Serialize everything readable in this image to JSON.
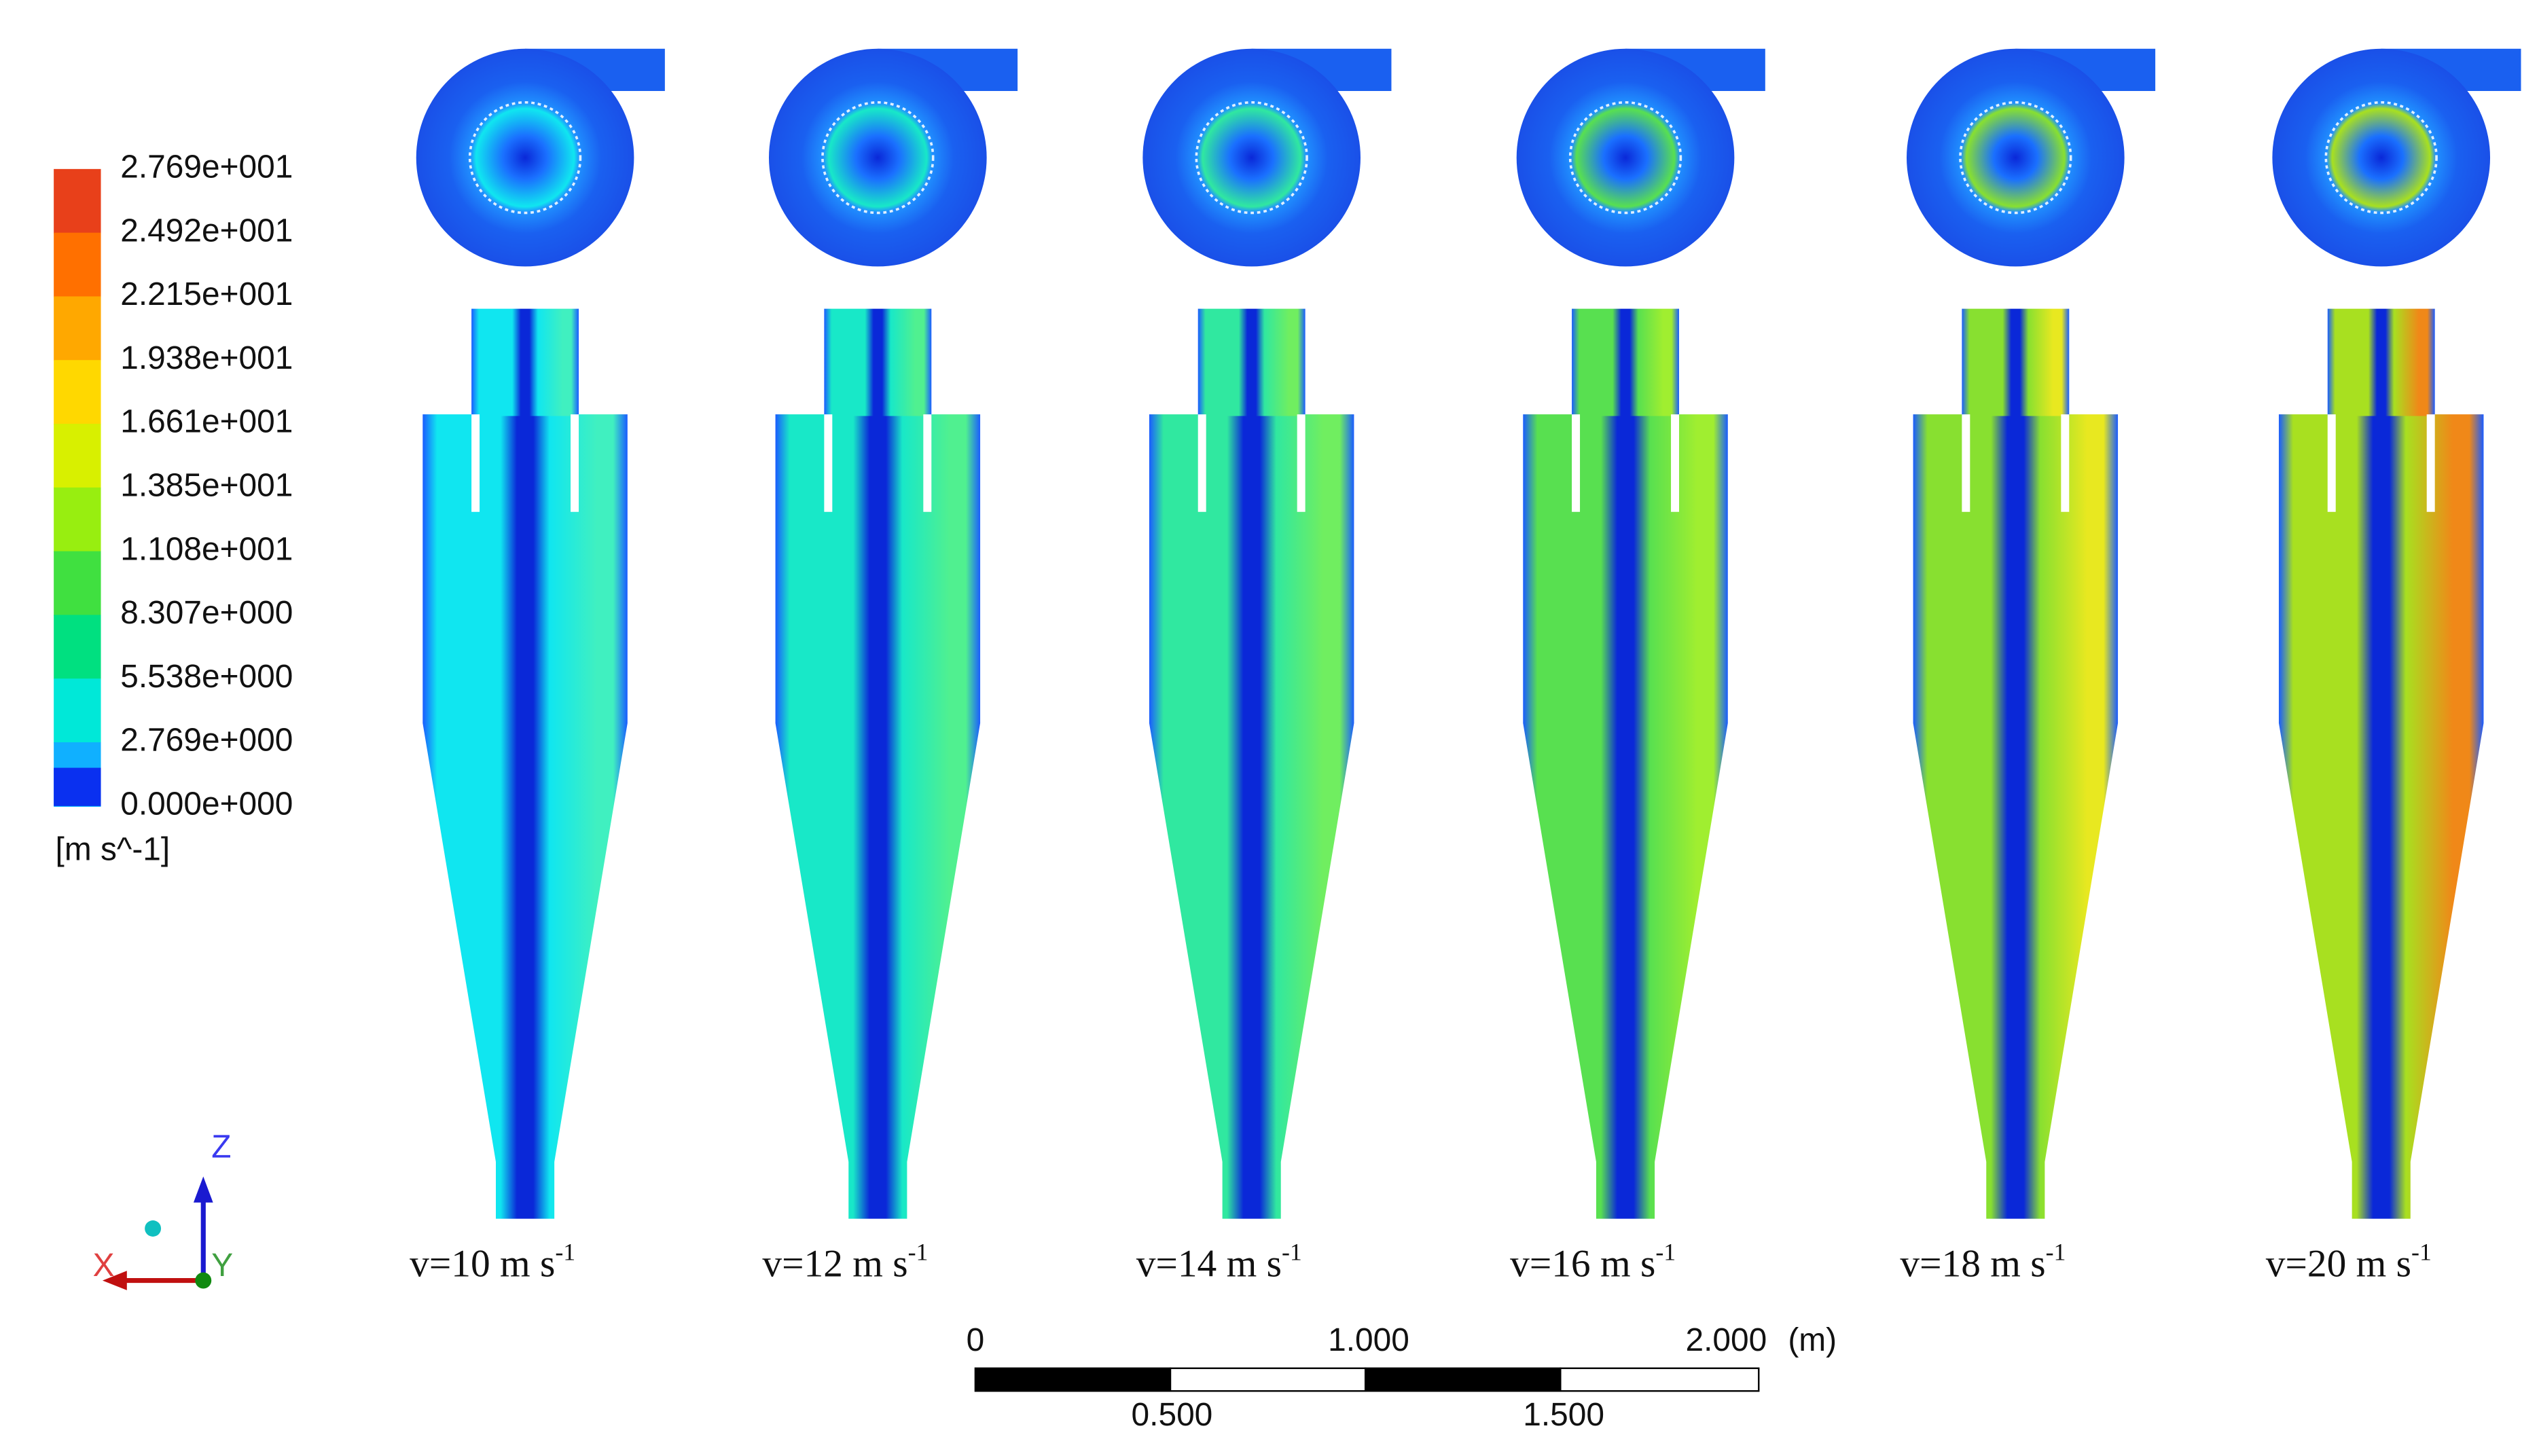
{
  "colorbar": {
    "labels": [
      "2.769e+001",
      "2.492e+001",
      "2.215e+001",
      "1.938e+001",
      "1.661e+001",
      "1.385e+001",
      "1.108e+001",
      "8.307e+000",
      "5.538e+000",
      "2.769e+000",
      "0.000e+000"
    ],
    "unit": "[m s^-1]"
  },
  "cases": [
    {
      "label": "v=10 m s",
      "sup": "-1"
    },
    {
      "label": "v=12 m s",
      "sup": "-1"
    },
    {
      "label": "v=14 m s",
      "sup": "-1"
    },
    {
      "label": "v=16 m s",
      "sup": "-1"
    },
    {
      "label": "v=18 m s",
      "sup": "-1"
    },
    {
      "label": "v=20 m s",
      "sup": "-1"
    }
  ],
  "scale_bar": {
    "top": [
      "0",
      "1.000",
      "2.000",
      "(m)"
    ],
    "bottom": [
      "0.500",
      "1.500"
    ]
  },
  "axes": {
    "z": "Z",
    "x": "X",
    "y": "Y"
  }
}
